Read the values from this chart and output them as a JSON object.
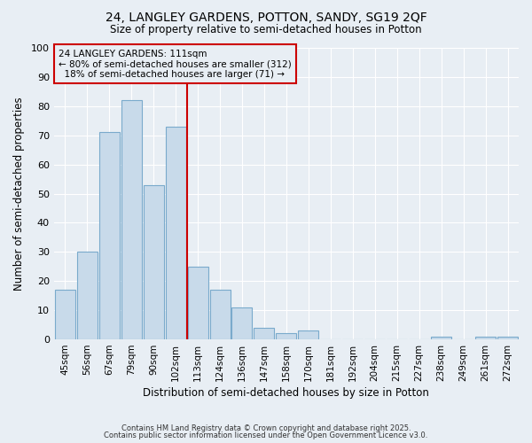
{
  "title": "24, LANGLEY GARDENS, POTTON, SANDY, SG19 2QF",
  "subtitle": "Size of property relative to semi-detached houses in Potton",
  "xlabel": "Distribution of semi-detached houses by size in Potton",
  "ylabel": "Number of semi-detached properties",
  "categories": [
    "45sqm",
    "56sqm",
    "67sqm",
    "79sqm",
    "90sqm",
    "102sqm",
    "113sqm",
    "124sqm",
    "136sqm",
    "147sqm",
    "158sqm",
    "170sqm",
    "181sqm",
    "192sqm",
    "204sqm",
    "215sqm",
    "227sqm",
    "238sqm",
    "249sqm",
    "261sqm",
    "272sqm"
  ],
  "values": [
    17,
    30,
    71,
    82,
    53,
    73,
    25,
    17,
    11,
    4,
    2,
    3,
    0,
    0,
    0,
    0,
    0,
    1,
    0,
    1,
    1
  ],
  "bar_color": "#c8daea",
  "bar_edge_color": "#7aaacc",
  "red_line_index": 6,
  "annotation_text": "24 LANGLEY GARDENS: 111sqm\n← 80% of semi-detached houses are smaller (312)\n  18% of semi-detached houses are larger (71) →",
  "ylim": [
    0,
    100
  ],
  "yticks": [
    0,
    10,
    20,
    30,
    40,
    50,
    60,
    70,
    80,
    90,
    100
  ],
  "background_color": "#e8eef4",
  "grid_color": "#ffffff",
  "footer_line1": "Contains HM Land Registry data © Crown copyright and database right 2025.",
  "footer_line2": "Contains public sector information licensed under the Open Government Licence v3.0."
}
